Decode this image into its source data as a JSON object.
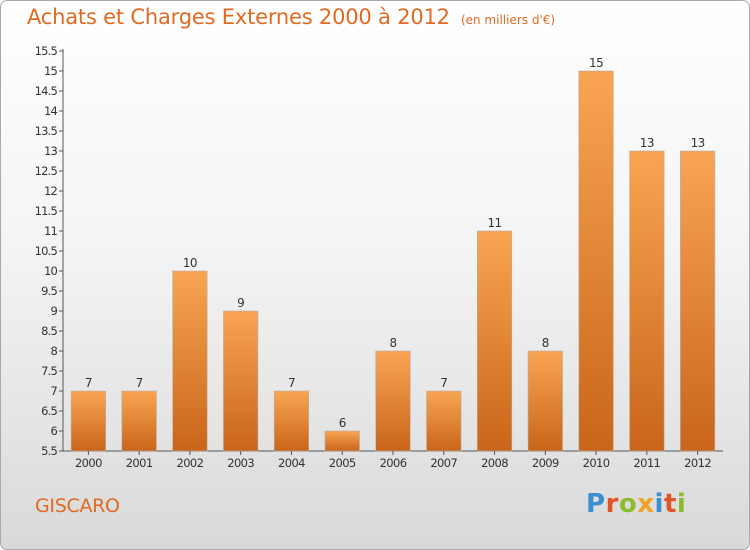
{
  "header": {
    "title": "Achats et Charges Externes 2000 à 2012",
    "subtitle": "(en milliers d'€)"
  },
  "footer": {
    "place": "GISCARO",
    "logo": "Proxiti",
    "logo_letters": [
      "P",
      "r",
      "o",
      "x",
      "i",
      "t",
      "i"
    ],
    "logo_colors": [
      "#3a8fd1",
      "#e0542a",
      "#8dbb2e",
      "#f0a323",
      "#3a8fd1",
      "#e0542a",
      "#8dbb2e"
    ]
  },
  "colors": {
    "bar_light": "#f8a553",
    "bar_dark": "#c9651a",
    "title": "#e06a23"
  },
  "chart_data": {
    "type": "bar",
    "categories": [
      "2000",
      "2001",
      "2002",
      "2003",
      "2004",
      "2005",
      "2006",
      "2007",
      "2008",
      "2009",
      "2010",
      "2011",
      "2012"
    ],
    "values": [
      7,
      7,
      10,
      9,
      7,
      6,
      8,
      7,
      11,
      8,
      15,
      13,
      13
    ],
    "data_labels": [
      "7",
      "7",
      "10",
      "9",
      "7",
      "6",
      "8",
      "7",
      "11",
      "8",
      "15",
      "13",
      "13"
    ],
    "ylim": [
      5.5,
      15.5
    ],
    "yticks": [
      "5.5",
      "6",
      "6.5",
      "7",
      "7.5",
      "8",
      "8.5",
      "9",
      "9.5",
      "10",
      "10.5",
      "11",
      "11.5",
      "12",
      "12.5",
      "13",
      "13.5",
      "14",
      "14.5",
      "15",
      "15.5"
    ],
    "xlabel": "",
    "ylabel": "",
    "grid": false,
    "legend": "none"
  }
}
